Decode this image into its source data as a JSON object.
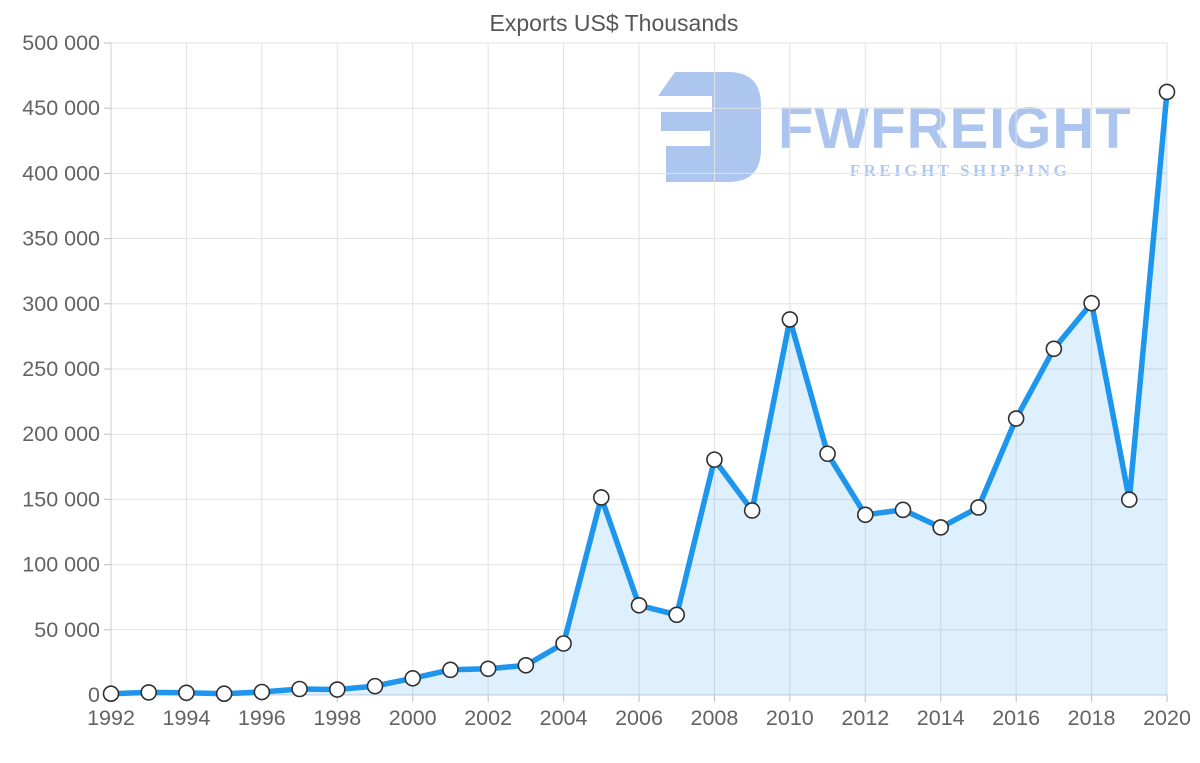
{
  "chart_data": {
    "type": "area",
    "title": "Exports US$ Thousands",
    "xlabel": "",
    "ylabel": "",
    "x": [
      1992,
      1993,
      1994,
      1995,
      1996,
      1997,
      1998,
      1999,
      2000,
      2001,
      2002,
      2003,
      2004,
      2005,
      2006,
      2007,
      2008,
      2009,
      2010,
      2011,
      2012,
      2013,
      2014,
      2015,
      2016,
      2017,
      2018,
      2019,
      2020
    ],
    "values": [
      1000,
      2000,
      1700,
      1000,
      2300,
      4600,
      4200,
      6800,
      12800,
      19300,
      20100,
      22800,
      39500,
      151500,
      68800,
      61500,
      180500,
      141500,
      288000,
      185000,
      138200,
      142000,
      128500,
      143800,
      212000,
      265500,
      300500,
      149800,
      462500
    ],
    "xlim": [
      1992,
      2020
    ],
    "ylim": [
      0,
      500000
    ],
    "y_tick_step": 50000,
    "y_tick_labels": [
      "0",
      "50 000",
      "100 000",
      "150 000",
      "200 000",
      "250 000",
      "300 000",
      "350 000",
      "400 000",
      "450 000",
      "500 000"
    ],
    "x_tick_labels": [
      "1992",
      "1994",
      "1996",
      "1998",
      "2000",
      "2002",
      "2004",
      "2006",
      "2008",
      "2010",
      "2012",
      "2014",
      "2016",
      "2018",
      "2020"
    ],
    "x_tick_years": [
      1992,
      1994,
      1996,
      1998,
      2000,
      2002,
      2004,
      2006,
      2008,
      2010,
      2012,
      2014,
      2016,
      2018,
      2020
    ],
    "grid": true,
    "legend": "none",
    "marker": "circle",
    "colors": {
      "line": "#1e96ed",
      "area": "rgba(33,150,243,0.15)",
      "marker_fill": "#ffffff",
      "marker_stroke": "#2f2f2f",
      "grid": "#e2e2e2",
      "axis": "#cfcfcf",
      "tick": "#bdbdbd",
      "label": "#636363",
      "title": "#565656"
    }
  },
  "watermark": {
    "brand": "FWFREIGHT",
    "tagline": "FREIGHT SHIPPING",
    "color": "#a6c1ee"
  }
}
